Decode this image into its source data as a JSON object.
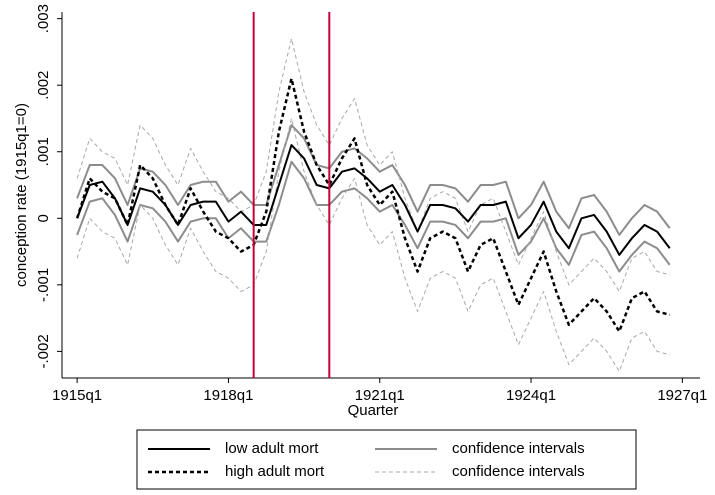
{
  "chart_data": {
    "type": "line",
    "y_label": "conception rate (1915q1=0)",
    "x_label": "Quarter",
    "x": [
      0,
      1,
      2,
      3,
      4,
      5,
      6,
      7,
      8,
      9,
      10,
      11,
      12,
      13,
      14,
      15,
      16,
      17,
      18,
      19,
      20,
      21,
      22,
      23,
      24,
      25,
      26,
      27,
      28,
      29,
      30,
      31,
      32,
      33,
      34,
      35,
      36,
      37,
      38,
      39,
      40,
      41,
      42,
      43,
      44,
      45,
      46,
      47
    ],
    "xlim": [
      -1.2,
      49.4
    ],
    "xticks": [
      {
        "value": 0,
        "label": "1915q1"
      },
      {
        "value": 12,
        "label": "1918q1"
      },
      {
        "value": 24,
        "label": "1921q1"
      },
      {
        "value": 36,
        "label": "1924q1"
      },
      {
        "value": 48,
        "label": "1927q1"
      }
    ],
    "ylim": [
      -0.0024,
      0.0031
    ],
    "yticks": [
      {
        "value": -0.002,
        "label": "-.002"
      },
      {
        "value": -0.001,
        "label": "-.001"
      },
      0,
      {
        "value": 0.001,
        "label": ".001"
      },
      {
        "value": 0.002,
        "label": ".002"
      },
      {
        "value": 0.003,
        "label": ".003"
      }
    ],
    "grid": false,
    "vlines": [
      14,
      20
    ],
    "vline_color": "#c8003c",
    "series": [
      {
        "name": "low adult mort",
        "color": "#000000",
        "width": 2,
        "dash": "none",
        "values": [
          0,
          0.0005,
          0.00055,
          0.0003,
          -0.0001,
          0.00045,
          0.0004,
          0.0002,
          -0.0001,
          0.0002,
          0.00025,
          0.00025,
          -5e-05,
          0.0001,
          -0.0001,
          -0.0001,
          0.0005,
          0.0011,
          0.0009,
          0.0005,
          0.00045,
          0.0007,
          0.00075,
          0.0006,
          0.0004,
          0.0005,
          0.0002,
          -0.0002,
          0.0002,
          0.0002,
          0.00015,
          -5e-05,
          0.0002,
          0.0002,
          0.00025,
          -0.0003,
          -0.0001,
          0.00025,
          -0.0002,
          -0.00045,
          0,
          5e-05,
          -0.0002,
          -0.00055,
          -0.0003,
          -0.0001,
          -0.0002,
          -0.00045
        ]
      },
      {
        "name": "confidence intervals",
        "color": "#8c8c8c",
        "width": 2,
        "dash": "none",
        "upper": [
          0.0003,
          0.0008,
          0.0008,
          0.0006,
          0.0002,
          0.00075,
          0.0007,
          0.0005,
          0.0002,
          0.0005,
          0.00055,
          0.00055,
          0.00025,
          0.0004,
          0.0002,
          0.0002,
          0.0008,
          0.0014,
          0.0012,
          0.0008,
          0.00075,
          0.001,
          0.00105,
          0.0009,
          0.0007,
          0.0008,
          0.0005,
          0.0001,
          0.0005,
          0.0005,
          0.00045,
          0.00025,
          0.0005,
          0.0005,
          0.00055,
          0,
          0.0002,
          0.00055,
          0.0001,
          -0.00015,
          0.0003,
          0.00035,
          0.0001,
          -0.00025,
          0,
          0.0002,
          0.0001,
          -0.00015
        ],
        "lower": [
          -0.00025,
          0.00025,
          0.0003,
          5e-05,
          -0.00035,
          0.0002,
          0.00015,
          -5e-05,
          -0.00035,
          -5e-05,
          0,
          0,
          -0.0003,
          -0.00015,
          -0.00035,
          -0.00035,
          0.0002,
          0.00085,
          0.0006,
          0.0002,
          0.0002,
          0.0004,
          0.00045,
          0.0003,
          0.0001,
          0.0002,
          -0.0001,
          -0.00045,
          -5e-05,
          -5e-05,
          -0.0001,
          -0.0003,
          -5e-05,
          -5e-05,
          0,
          -0.00055,
          -0.00035,
          0,
          -0.00045,
          -0.0007,
          -0.00025,
          -0.0002,
          -0.00045,
          -0.0008,
          -0.00055,
          -0.00035,
          -0.00045,
          -0.0007
        ]
      },
      {
        "name": "high adult mort",
        "color": "#000000",
        "width": 2.5,
        "dash": "4,3",
        "values": [
          0,
          0.0006,
          0.0004,
          0.0003,
          -0.0001,
          0.0008,
          0.0006,
          0.0002,
          -0.0001,
          0.00045,
          0.0001,
          -0.0002,
          -0.0003,
          -0.0005,
          -0.0004,
          0.0001,
          0.0013,
          0.0021,
          0.0013,
          0.0008,
          0.0005,
          0.0009,
          0.0012,
          0.0005,
          0.0002,
          0.0004,
          -0.0003,
          -0.0008,
          -0.0003,
          -0.0002,
          -0.0003,
          -0.0008,
          -0.0004,
          -0.0003,
          -0.0008,
          -0.0013,
          -0.0009,
          -0.0005,
          -0.0011,
          -0.0016,
          -0.0014,
          -0.0012,
          -0.0014,
          -0.0017,
          -0.0012,
          -0.0011,
          -0.0014,
          -0.00145
        ]
      },
      {
        "name": "confidence intervals",
        "color": "#a8a8a8",
        "width": 1,
        "dash": "4,3",
        "upper": [
          0.0006,
          0.0012,
          0.001,
          0.0009,
          0.0005,
          0.0014,
          0.0012,
          0.0008,
          0.0005,
          0.00105,
          0.0007,
          0.0004,
          0.0003,
          0.0001,
          0.0002,
          0.0007,
          0.0019,
          0.0027,
          0.0019,
          0.0014,
          0.0011,
          0.0015,
          0.0018,
          0.0011,
          0.0008,
          0.001,
          0.0003,
          -0.0002,
          0.0003,
          0.0004,
          0.0003,
          -0.0002,
          0.0002,
          0.0003,
          -0.0002,
          -0.0007,
          -0.0003,
          0.0001,
          -0.0005,
          -0.001,
          -0.0008,
          -0.0006,
          -0.0008,
          -0.0011,
          -0.0006,
          -0.0005,
          -0.0008,
          -0.00085
        ],
        "lower": [
          -0.0006,
          0,
          -0.0002,
          -0.0003,
          -0.0007,
          0.0002,
          0,
          -0.0004,
          -0.0007,
          -0.00015,
          -0.0005,
          -0.0008,
          -0.0009,
          -0.0011,
          -0.001,
          -0.0005,
          0.0007,
          0.0015,
          0.0007,
          0.0002,
          -0.0001,
          0.0003,
          0.0006,
          -0.0001,
          -0.0004,
          -0.0002,
          -0.0009,
          -0.0014,
          -0.0009,
          -0.0008,
          -0.0009,
          -0.0014,
          -0.001,
          -0.0009,
          -0.0014,
          -0.0019,
          -0.0015,
          -0.0011,
          -0.0017,
          -0.0022,
          -0.002,
          -0.0018,
          -0.002,
          -0.0023,
          -0.0018,
          -0.0017,
          -0.002,
          -0.00205
        ]
      }
    ]
  }
}
